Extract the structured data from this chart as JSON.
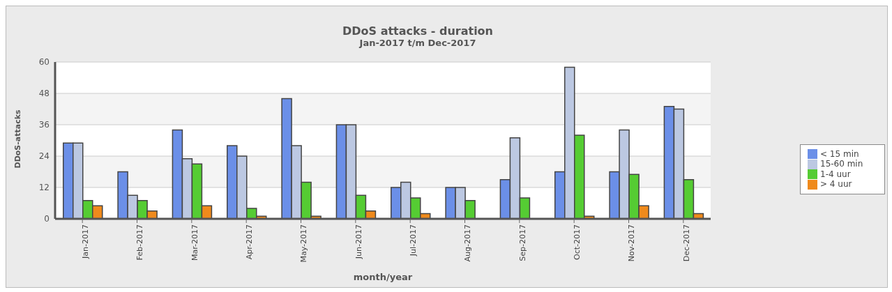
{
  "chart_data": {
    "type": "bar",
    "title": "DDoS attacks - duration",
    "subtitle": "Jan-2017 t/m Dec-2017",
    "xlabel": "month/year",
    "ylabel": "DDoS-attacks",
    "categories": [
      "Jan-2017",
      "Feb-2017",
      "Mar-2017",
      "Apr-2017",
      "May-2017",
      "Jun-2017",
      "Jul-2017",
      "Aug-2017",
      "Sep-2017",
      "Oct-2017",
      "Nov-2017",
      "Dec-2017"
    ],
    "series": [
      {
        "name": "< 15 min",
        "color": "#6b8fe8",
        "values": [
          29,
          18,
          34,
          28,
          46,
          36,
          12,
          12,
          15,
          18,
          18,
          43
        ]
      },
      {
        "name": "15-60 min",
        "color": "#bcc8e2",
        "values": [
          29,
          9,
          23,
          24,
          28,
          36,
          14,
          12,
          31,
          58,
          34,
          42
        ]
      },
      {
        "name": "1-4 uur",
        "color": "#55cc33",
        "values": [
          7,
          7,
          21,
          4,
          14,
          9,
          8,
          7,
          8,
          32,
          17,
          15
        ]
      },
      {
        "name": "> 4 uur",
        "color": "#ef8a1c",
        "values": [
          5,
          3,
          5,
          1,
          1,
          3,
          2,
          0,
          0,
          1,
          5,
          2
        ]
      }
    ],
    "ylim": [
      0,
      60
    ],
    "yticks": [
      0,
      12,
      24,
      36,
      48,
      60
    ],
    "grid": "y",
    "legend": "right"
  }
}
